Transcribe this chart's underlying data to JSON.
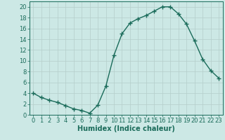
{
  "x": [
    0,
    1,
    2,
    3,
    4,
    5,
    6,
    7,
    8,
    9,
    10,
    11,
    12,
    13,
    14,
    15,
    16,
    17,
    18,
    19,
    20,
    21,
    22,
    23
  ],
  "y": [
    4,
    3.2,
    2.7,
    2.3,
    1.7,
    1.1,
    0.8,
    0.3,
    1.8,
    5.3,
    11,
    15,
    17,
    17.8,
    18.4,
    19.2,
    20,
    20,
    18.7,
    16.8,
    13.7,
    10.3,
    8.2,
    6.8
  ],
  "line_color": "#1a6b5a",
  "marker": "+",
  "marker_size": 4,
  "linewidth": 1.0,
  "bg_color": "#cce8e5",
  "grid_color": "#b5ceca",
  "tick_color": "#1a6b5a",
  "xlabel": "Humidex (Indice chaleur)",
  "xlabel_fontsize": 7,
  "xlabel_color": "#1a6b5a",
  "tick_fontsize": 6,
  "xlim": [
    -0.5,
    23.5
  ],
  "ylim": [
    0,
    21
  ],
  "yticks": [
    0,
    2,
    4,
    6,
    8,
    10,
    12,
    14,
    16,
    18,
    20
  ],
  "xticks": [
    0,
    1,
    2,
    3,
    4,
    5,
    6,
    7,
    8,
    9,
    10,
    11,
    12,
    13,
    14,
    15,
    16,
    17,
    18,
    19,
    20,
    21,
    22,
    23
  ]
}
